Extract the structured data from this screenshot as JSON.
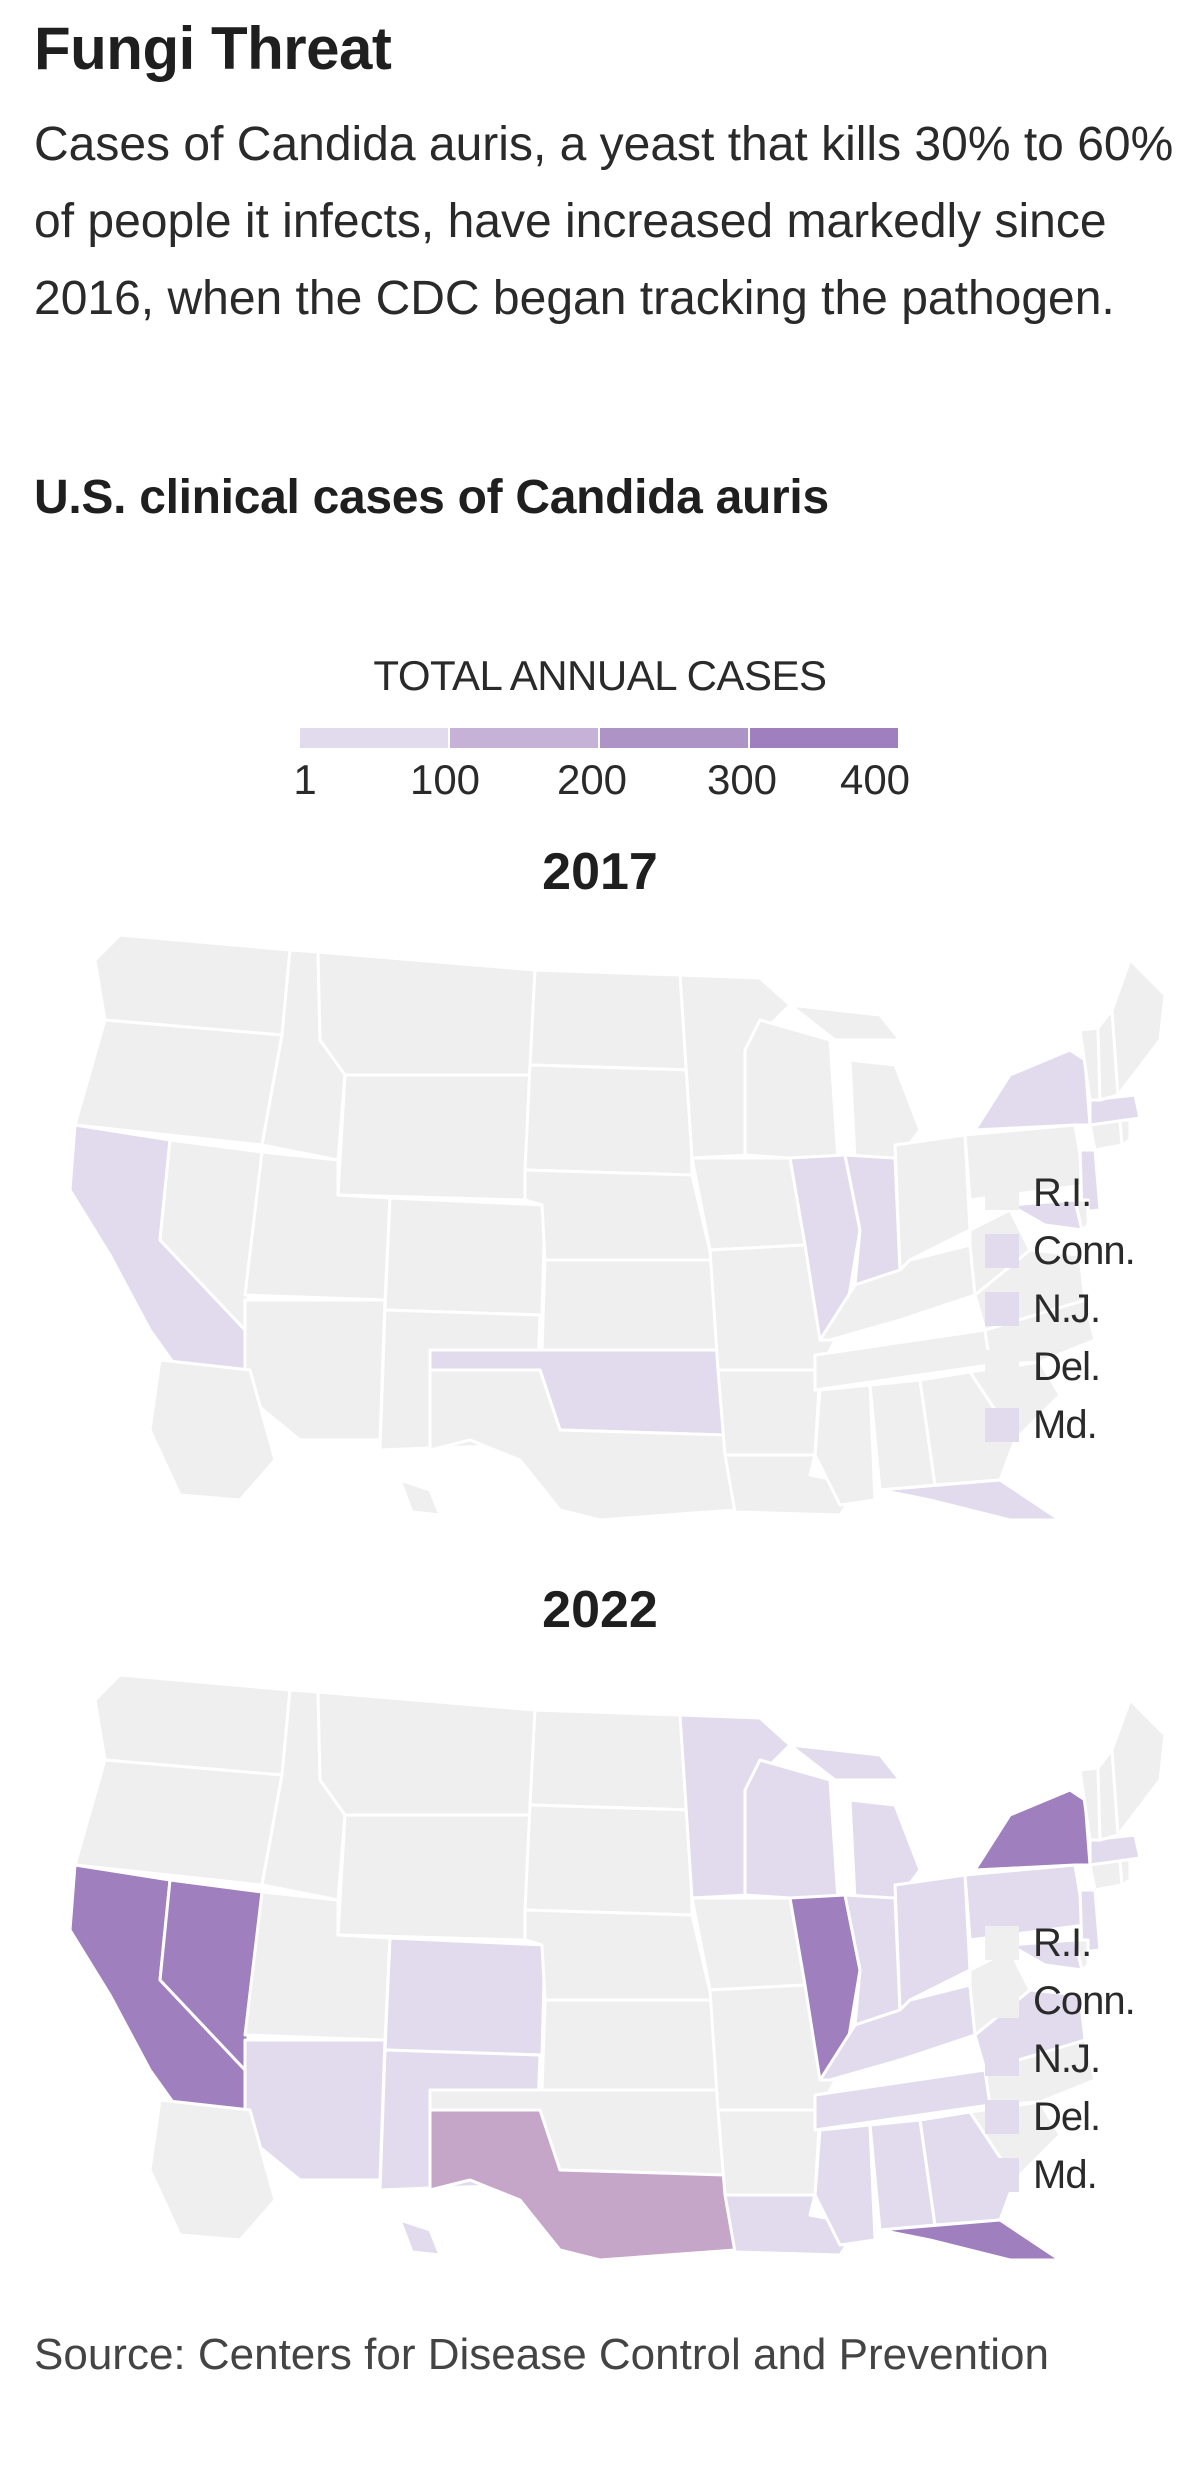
{
  "header": {
    "title": "Fungi Threat",
    "dek": "Cases of Candida auris, a yeast that kills 30% to 60% of people it infects, have increased markedly since 2016, when the CDC began tracking the pathogen."
  },
  "chart_title": "U.S. clinical cases of Candida auris",
  "legend": {
    "title": "TOTAL ANNUAL CASES",
    "ticks": [
      "1",
      "100",
      "200",
      "300",
      "400"
    ],
    "colors": [
      "#e2dbed",
      "#c6b2d6",
      "#ad93c6",
      "#9f7fbd"
    ],
    "no_data_color": "#efefef"
  },
  "maps": [
    {
      "year": "2017",
      "states": {
        "CA": "#e2dbed",
        "NY": "#e2dbed",
        "IL": "#e2dbed",
        "IN": "#e2dbed",
        "OK": "#e2dbed",
        "FL": "#e2dbed",
        "MA": "#e2dbed",
        "NJ": "#e2dbed",
        "MD": "#e2dbed"
      },
      "northeast": [
        {
          "label": "R.I.",
          "color": "#efefef"
        },
        {
          "label": "Conn.",
          "color": "#e2dbed"
        },
        {
          "label": "N.J.",
          "color": "#e2dbed"
        },
        {
          "label": "Del.",
          "color": "#efefef"
        },
        {
          "label": "Md.",
          "color": "#e2dbed"
        }
      ]
    },
    {
      "year": "2022",
      "states": {
        "CA": "#9f7fbd",
        "NV": "#9f7fbd",
        "NY": "#9f7fbd",
        "IL": "#9f7fbd",
        "FL": "#9f7fbd",
        "TX": "#c6a6c8",
        "AZ": "#e2dbed",
        "NM": "#e2dbed",
        "CO": "#e2dbed",
        "MN": "#e2dbed",
        "WI": "#e2dbed",
        "MI": "#e2dbed",
        "IN": "#e2dbed",
        "OH": "#e2dbed",
        "PA": "#e2dbed",
        "KY": "#e2dbed",
        "TN": "#e2dbed",
        "MS": "#e2dbed",
        "AL": "#e2dbed",
        "GA": "#e2dbed",
        "LA": "#e2dbed",
        "VA": "#e2dbed",
        "MA": "#e2dbed",
        "NJ": "#e2dbed",
        "MD": "#e2dbed",
        "HI": "#e2dbed"
      },
      "northeast": [
        {
          "label": "R.I.",
          "color": "#efefef"
        },
        {
          "label": "Conn.",
          "color": "#efefef"
        },
        {
          "label": "N.J.",
          "color": "#e2dbed"
        },
        {
          "label": "Del.",
          "color": "#e2dbed"
        },
        {
          "label": "Md.",
          "color": "#e2dbed"
        }
      ]
    }
  ],
  "source": "Source: Centers for Disease Control and Prevention"
}
